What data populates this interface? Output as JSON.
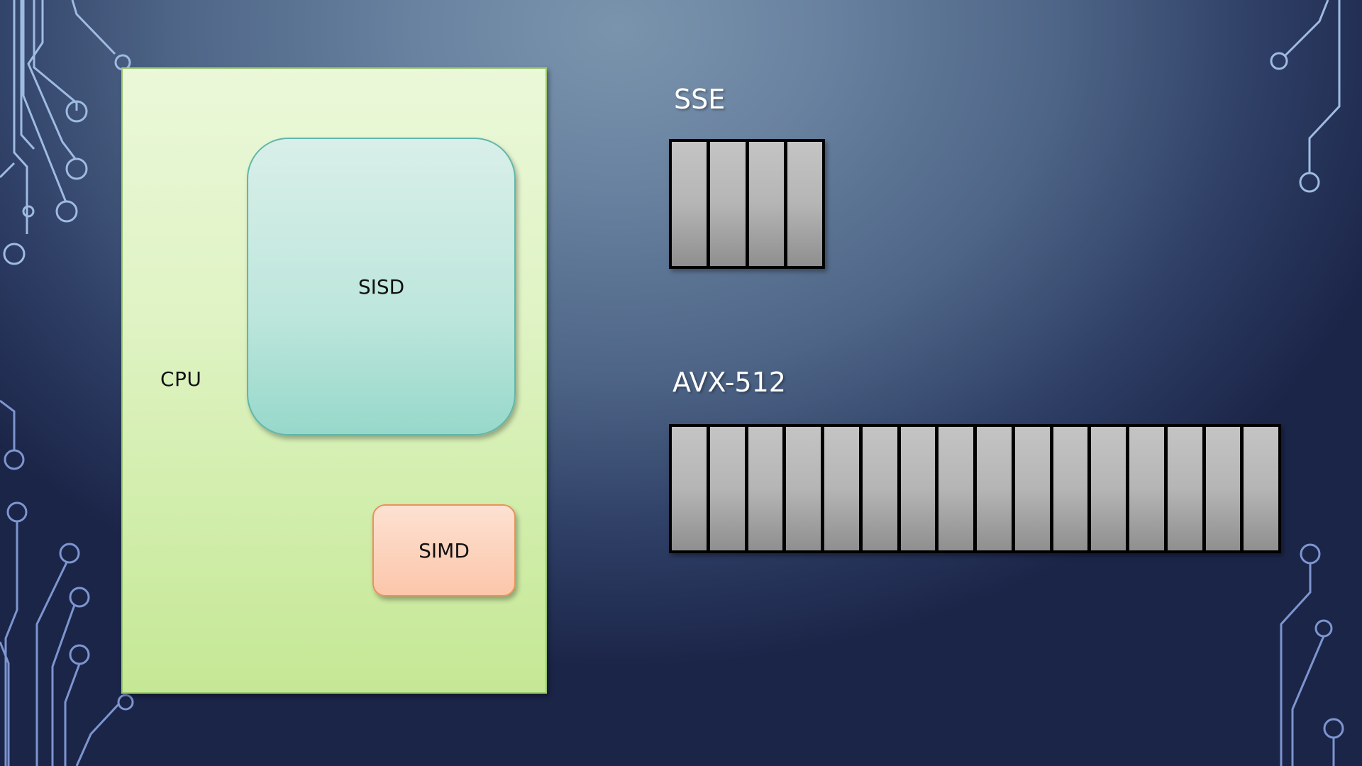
{
  "diagram": {
    "cpu_label": "CPU",
    "sisd_label": "SISD",
    "simd_label": "SIMD",
    "sse": {
      "title": "SSE",
      "lane_count": 4
    },
    "avx512": {
      "title": "AVX-512",
      "lane_count": 16
    }
  },
  "colors": {
    "cpu_fill": "#dff3c4",
    "sisd_fill": "#bde6dc",
    "simd_fill": "#fcc6aa",
    "register_lane": "#b5b5b5",
    "background": "#4d6486"
  }
}
